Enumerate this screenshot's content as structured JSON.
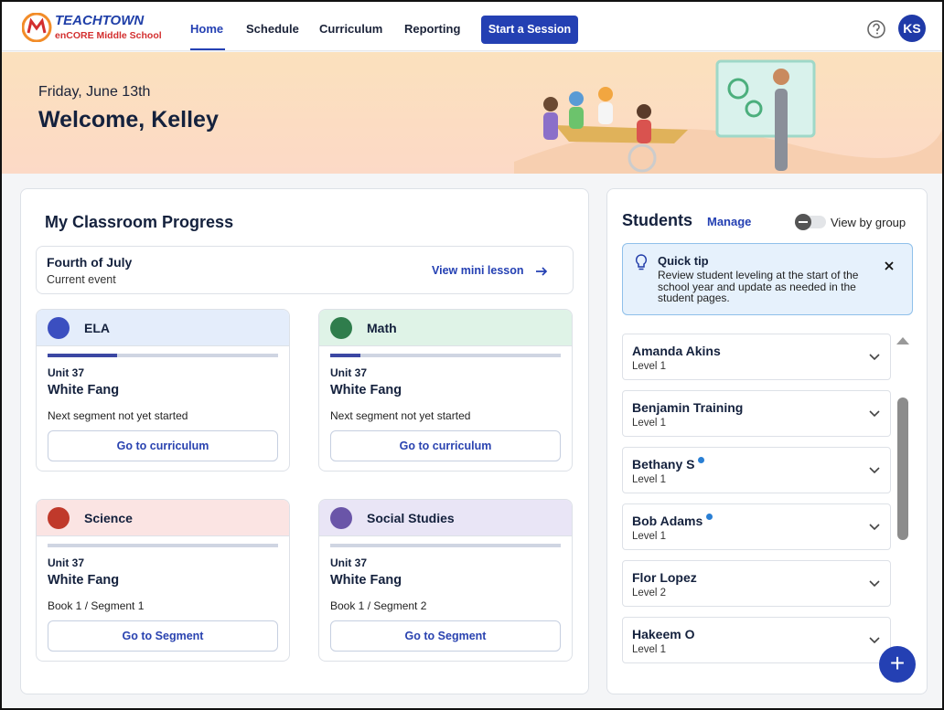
{
  "header": {
    "logo_brand": "TEACHTOWN",
    "logo_product": "enCORE Middle School",
    "nav": [
      "Home",
      "Schedule",
      "Curriculum",
      "Reporting"
    ],
    "active_nav": 0,
    "cta": "Start a Session",
    "avatar": "KS"
  },
  "banner": {
    "date": "Friday, June 13th",
    "greeting": "Welcome, Kelley"
  },
  "progress": {
    "title": "My Classroom Progress",
    "event": {
      "title": "Fourth of July",
      "subtitle": "Current event",
      "link": "View mini lesson"
    },
    "progress_range": [
      0,
      100
    ],
    "subjects": [
      {
        "name": "ELA",
        "header_color": "#e4edfb",
        "icon_color": "#3b4fc0",
        "progress": 30,
        "unit": "Unit 37",
        "book": "White Fang",
        "status": "Next segment not yet started",
        "button": "Go to curriculum"
      },
      {
        "name": "Math",
        "header_color": "#dff3e7",
        "icon_color": "#2f7d4c",
        "progress": 13,
        "unit": "Unit 37",
        "book": "White Fang",
        "status": "Next segment not yet started",
        "button": "Go to curriculum"
      },
      {
        "name": "Science",
        "header_color": "#fbe4e3",
        "icon_color": "#c0392b",
        "progress": 0,
        "unit": "Unit 37",
        "book": "White Fang",
        "status": "Book 1 / Segment 1",
        "button": "Go to Segment"
      },
      {
        "name": "Social Studies",
        "header_color": "#e9e5f6",
        "icon_color": "#6a55a8",
        "progress": 0,
        "unit": "Unit 37",
        "book": "White Fang",
        "status": "Book 1 / Segment 2",
        "button": "Go to Segment"
      }
    ]
  },
  "students": {
    "title": "Students",
    "manage": "Manage",
    "toggle": "View by group",
    "tip": {
      "title": "Quick tip",
      "text": "Review student leveling at the start of the school year and update as needed in the student pages."
    },
    "list": [
      {
        "name": "Amanda Akins",
        "level": "Level 1",
        "new": false
      },
      {
        "name": "Benjamin Training",
        "level": "Level 1",
        "new": false
      },
      {
        "name": "Bethany S",
        "level": "Level 1",
        "new": true
      },
      {
        "name": "Bob Adams",
        "level": "Level 1",
        "new": true
      },
      {
        "name": "Flor Lopez",
        "level": "Level 2",
        "new": false
      },
      {
        "name": "Hakeem O",
        "level": "Level 1",
        "new": false
      }
    ]
  }
}
